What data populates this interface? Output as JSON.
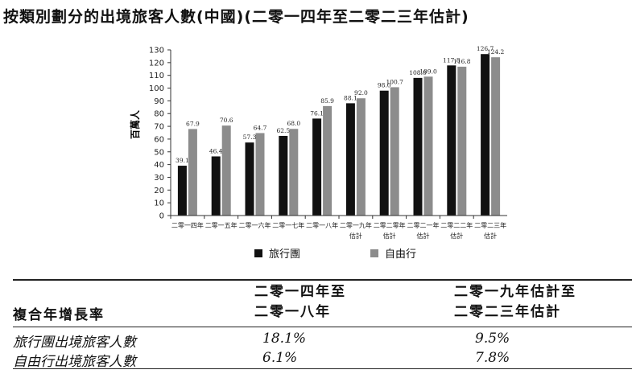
{
  "title": "按類別劃分的出境旅客人數(中國)(二零一四年至二零二三年估計)",
  "chart_data": {
    "type": "bar",
    "ylabel": "百萬人",
    "ylim": [
      0,
      130
    ],
    "yticks": [
      0,
      10,
      20,
      30,
      40,
      50,
      60,
      70,
      80,
      90,
      100,
      110,
      120,
      130
    ],
    "categories": [
      [
        "二零一四年"
      ],
      [
        "二零一五年"
      ],
      [
        "二零一六年"
      ],
      [
        "二零一七年"
      ],
      [
        "二零一八年"
      ],
      [
        "二零一九年",
        "估計"
      ],
      [
        "二零二零年",
        "估計"
      ],
      [
        "二零二一年",
        "估計"
      ],
      [
        "二零二二年",
        "估計"
      ],
      [
        "二零二三年",
        "估計"
      ]
    ],
    "series": [
      {
        "name": "旅行團",
        "color": "#111111",
        "values": [
          39.1,
          46.4,
          57.3,
          62.5,
          76.1,
          88.1,
          98.0,
          108.0,
          117.8,
          126.7
        ],
        "labels": [
          "39.1",
          "46.4",
          "57.3",
          "62.5",
          "76.1",
          "88.1",
          "98.0",
          "108.0",
          "117.8",
          "126.7"
        ]
      },
      {
        "name": "自由行",
        "color": "#8c8c8c",
        "values": [
          67.9,
          70.6,
          64.7,
          68.0,
          85.9,
          92.0,
          100.7,
          109.0,
          116.8,
          124.2
        ],
        "labels": [
          "67.9",
          "70.6",
          "64.7",
          "68.0",
          "85.9",
          "92.0",
          "100.7",
          "109.0",
          "116.8",
          "124.2"
        ]
      }
    ]
  },
  "table": {
    "row_header": "複合年增長率",
    "col1_line1": "二零一四年至",
    "col1_line2": "二零一八年",
    "col2_line1": "二零一九年估計至",
    "col2_line2": "二零二三年估計",
    "rows": [
      {
        "label": "旅行團出境旅客人數",
        "v1": "18.1%",
        "v2": "9.5%"
      },
      {
        "label": "自由行出境旅客人數",
        "v1": "6.1%",
        "v2": "7.8%"
      }
    ]
  }
}
